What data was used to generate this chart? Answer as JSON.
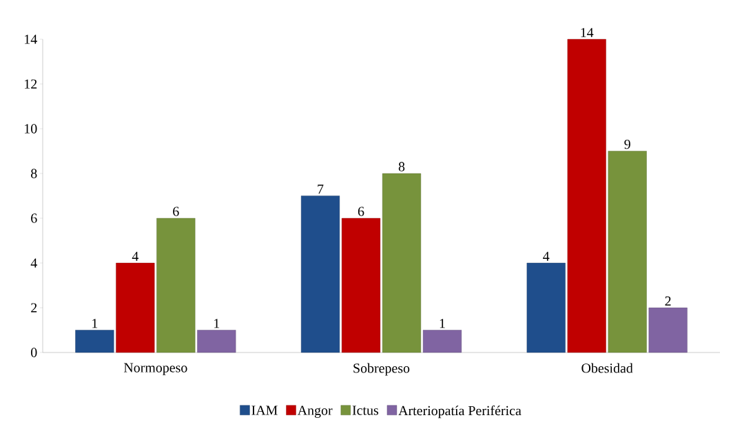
{
  "chart_data": {
    "type": "bar",
    "categories": [
      "Normopeso",
      "Sobrepeso",
      "Obesidad"
    ],
    "series": [
      {
        "name": "IAM",
        "color": "#1f4e8c",
        "values": [
          1,
          7,
          4
        ]
      },
      {
        "name": "Angor",
        "color": "#c00000",
        "values": [
          4,
          6,
          14
        ]
      },
      {
        "name": "Ictus",
        "color": "#77933c",
        "values": [
          6,
          8,
          9
        ]
      },
      {
        "name": "Arteriopatía Periférica",
        "color": "#8064a2",
        "values": [
          1,
          1,
          2
        ]
      }
    ],
    "ylim": [
      0,
      14
    ],
    "yticks": [
      0,
      2,
      4,
      6,
      8,
      10,
      12,
      14
    ],
    "data_labels": true,
    "legend": "bottom",
    "grid": false
  }
}
